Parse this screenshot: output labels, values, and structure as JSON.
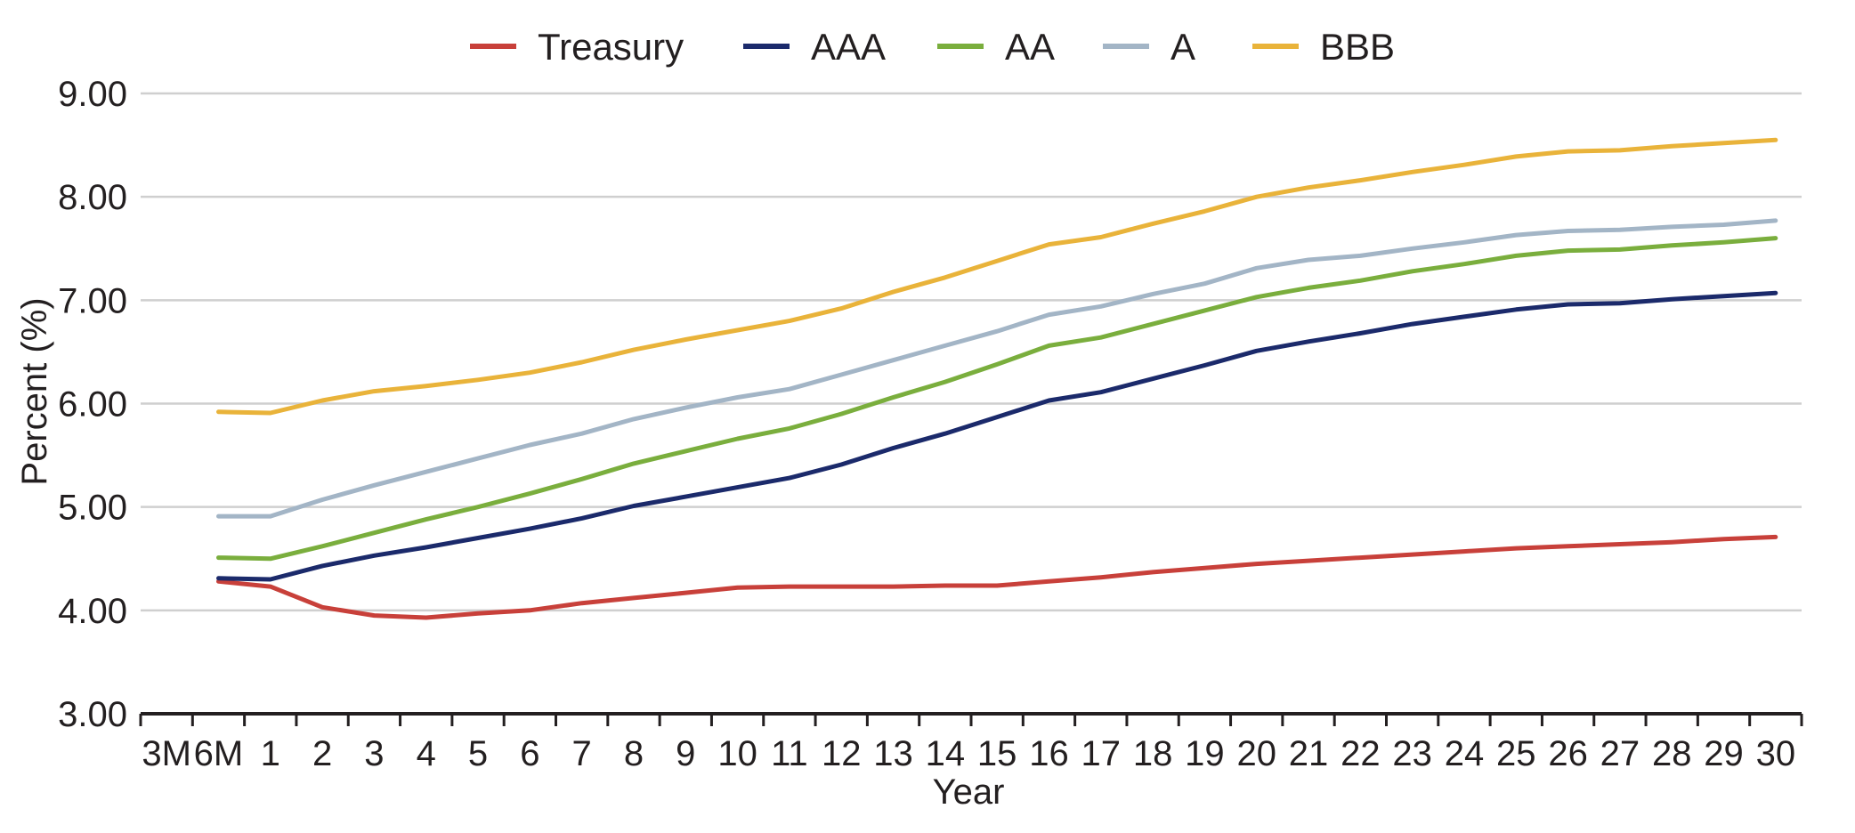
{
  "chart_data": {
    "type": "line",
    "xlabel": "Year",
    "ylabel": "Percent (%)",
    "ylim": [
      3.0,
      9.0
    ],
    "y_ticks": [
      "3.00",
      "4.00",
      "5.00",
      "6.00",
      "7.00",
      "8.00",
      "9.00"
    ],
    "grid": "horizontal",
    "legend_position": "top",
    "categories": [
      "3M",
      "6M",
      "1",
      "2",
      "3",
      "4",
      "5",
      "6",
      "7",
      "8",
      "9",
      "10",
      "11",
      "12",
      "13",
      "14",
      "15",
      "16",
      "17",
      "18",
      "19",
      "20",
      "21",
      "22",
      "23",
      "24",
      "25",
      "26",
      "27",
      "28",
      "29",
      "30"
    ],
    "series": [
      {
        "name": "Treasury",
        "color": "#c8403a",
        "x": [
          "6M",
          "1",
          "2",
          "3",
          "4",
          "5",
          "6",
          "7",
          "8",
          "9",
          "10",
          "11",
          "12",
          "13",
          "14",
          "15",
          "16",
          "17",
          "18",
          "19",
          "20",
          "21",
          "22",
          "23",
          "24",
          "25",
          "26",
          "27",
          "28",
          "29",
          "30"
        ],
        "values": [
          4.28,
          4.23,
          4.03,
          3.95,
          3.93,
          3.97,
          4.0,
          4.07,
          4.12,
          4.17,
          4.22,
          4.23,
          4.23,
          4.23,
          4.24,
          4.24,
          4.28,
          4.32,
          4.37,
          4.41,
          4.45,
          4.48,
          4.51,
          4.54,
          4.57,
          4.6,
          4.62,
          4.64,
          4.66,
          4.69,
          4.71
        ]
      },
      {
        "name": "AAA",
        "color": "#1b2a6b",
        "x": [
          "6M",
          "1",
          "2",
          "3",
          "4",
          "5",
          "6",
          "7",
          "8",
          "9",
          "10",
          "11",
          "12",
          "13",
          "14",
          "15",
          "16",
          "17",
          "18",
          "19",
          "20",
          "21",
          "22",
          "23",
          "24",
          "25",
          "26",
          "27",
          "28",
          "29",
          "30"
        ],
        "values": [
          4.31,
          4.3,
          4.43,
          4.53,
          4.61,
          4.7,
          4.79,
          4.89,
          5.01,
          5.1,
          5.19,
          5.28,
          5.41,
          5.57,
          5.71,
          5.87,
          6.03,
          6.11,
          6.24,
          6.37,
          6.51,
          6.6,
          6.68,
          6.77,
          6.84,
          6.91,
          6.96,
          6.97,
          7.01,
          7.04,
          7.07
        ]
      },
      {
        "name": "AA",
        "color": "#7aae3d",
        "x": [
          "6M",
          "1",
          "2",
          "3",
          "4",
          "5",
          "6",
          "7",
          "8",
          "9",
          "10",
          "11",
          "12",
          "13",
          "14",
          "15",
          "16",
          "17",
          "18",
          "19",
          "20",
          "21",
          "22",
          "23",
          "24",
          "25",
          "26",
          "27",
          "28",
          "29",
          "30"
        ],
        "values": [
          4.51,
          4.5,
          4.62,
          4.75,
          4.88,
          5.0,
          5.13,
          5.27,
          5.42,
          5.54,
          5.66,
          5.76,
          5.9,
          6.06,
          6.21,
          6.38,
          6.56,
          6.64,
          6.77,
          6.9,
          7.03,
          7.12,
          7.19,
          7.28,
          7.35,
          7.43,
          7.48,
          7.49,
          7.53,
          7.56,
          7.6
        ]
      },
      {
        "name": "A",
        "color": "#a3b5c6",
        "x": [
          "6M",
          "1",
          "2",
          "3",
          "4",
          "5",
          "6",
          "7",
          "8",
          "9",
          "10",
          "11",
          "12",
          "13",
          "14",
          "15",
          "16",
          "17",
          "18",
          "19",
          "20",
          "21",
          "22",
          "23",
          "24",
          "25",
          "26",
          "27",
          "28",
          "29",
          "30"
        ],
        "values": [
          4.91,
          4.91,
          5.07,
          5.21,
          5.34,
          5.47,
          5.6,
          5.71,
          5.85,
          5.96,
          6.06,
          6.14,
          6.28,
          6.42,
          6.56,
          6.7,
          6.86,
          6.94,
          7.06,
          7.16,
          7.31,
          7.39,
          7.43,
          7.5,
          7.56,
          7.63,
          7.67,
          7.68,
          7.71,
          7.73,
          7.77
        ]
      },
      {
        "name": "BBB",
        "color": "#e9b33a",
        "x": [
          "6M",
          "1",
          "2",
          "3",
          "4",
          "5",
          "6",
          "7",
          "8",
          "9",
          "10",
          "11",
          "12",
          "13",
          "14",
          "15",
          "16",
          "17",
          "18",
          "19",
          "20",
          "21",
          "22",
          "23",
          "24",
          "25",
          "26",
          "27",
          "28",
          "29",
          "30"
        ],
        "values": [
          5.92,
          5.91,
          6.03,
          6.12,
          6.17,
          6.23,
          6.3,
          6.4,
          6.52,
          6.62,
          6.71,
          6.8,
          6.92,
          7.08,
          7.22,
          7.38,
          7.54,
          7.61,
          7.74,
          7.86,
          8.0,
          8.09,
          8.16,
          8.24,
          8.31,
          8.39,
          8.44,
          8.45,
          8.49,
          8.52,
          8.55
        ]
      }
    ]
  }
}
